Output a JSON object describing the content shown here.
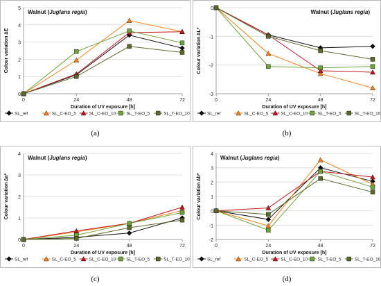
{
  "series_style": [
    {
      "color": "#111111",
      "marker": "diamond"
    },
    {
      "color": "#f58220",
      "marker": "triangle"
    },
    {
      "color": "#c0141c",
      "marker": "triangle"
    },
    {
      "color": "#6fa33b",
      "marker": "square"
    },
    {
      "color": "#5b6a2a",
      "marker": "square"
    }
  ],
  "chart_data": [
    {
      "type": "line",
      "panel_label": "(a)",
      "title_prefix": "Walnut (",
      "title_italic": "Juglans regia",
      "title_suffix": ")",
      "title_position": "top-left",
      "xlabel": "Duration of UV exposure  [h]",
      "ylabel": "Colour variation  ∆E",
      "x": [
        0,
        24,
        48,
        72
      ],
      "xlim": [
        0,
        72
      ],
      "xticks": [
        "0",
        "24",
        "48",
        "72"
      ],
      "ylim": [
        0,
        5
      ],
      "yticks": [
        "0",
        "1",
        "2",
        "3",
        "4",
        "5"
      ],
      "legend_position": "bottom",
      "series": [
        {
          "name": "SL_ref",
          "values": [
            0,
            1.1,
            3.4,
            2.65
          ]
        },
        {
          "name": "SL_C-EO_5",
          "values": [
            0,
            1.95,
            4.25,
            3.6
          ]
        },
        {
          "name": "SL_C-EO_10",
          "values": [
            0,
            1.15,
            3.55,
            3.6
          ]
        },
        {
          "name": "SL_T-EO_5",
          "values": [
            0,
            2.45,
            3.65,
            2.95
          ]
        },
        {
          "name": "SL_T-EO_10",
          "values": [
            0,
            1.0,
            2.75,
            2.4
          ]
        }
      ]
    },
    {
      "type": "line",
      "panel_label": "(b)",
      "title_prefix": "Walnut (",
      "title_italic": "Juglans regia",
      "title_suffix": ")",
      "title_position": "top-right",
      "xlabel": "Duration of UV exposure  [h]",
      "ylabel": "Colour variation  ∆L*",
      "x": [
        0,
        24,
        48,
        72
      ],
      "xlim": [
        0,
        72
      ],
      "xticks": [
        "0",
        "24",
        "48",
        "72"
      ],
      "ylim": [
        -3,
        0
      ],
      "yticks": [
        "-3",
        "-2",
        "-1",
        "0"
      ],
      "legend_position": "bottom",
      "series": [
        {
          "name": "SL_ref",
          "values": [
            0,
            -0.95,
            -1.4,
            -1.35
          ]
        },
        {
          "name": "SL_C-EO_5",
          "values": [
            0,
            -1.6,
            -2.3,
            -2.8
          ]
        },
        {
          "name": "SL_C-EO_10",
          "values": [
            0,
            -0.95,
            -2.2,
            -2.25
          ]
        },
        {
          "name": "SL_T-EO_5",
          "values": [
            0,
            -2.05,
            -2.1,
            -2.05
          ]
        },
        {
          "name": "SL_T-EO_10",
          "values": [
            0,
            -1.0,
            -1.5,
            -1.8
          ]
        }
      ]
    },
    {
      "type": "line",
      "panel_label": "(c)",
      "title_prefix": "Walnut (",
      "title_italic": "Juglans regia",
      "title_suffix": ")",
      "title_position": "top-left",
      "xlabel": "Duration of UV exposure  [h]",
      "ylabel": "Colour variation  ∆a*",
      "x": [
        0,
        24,
        48,
        72
      ],
      "xlim": [
        0,
        72
      ],
      "xticks": [
        "0",
        "24",
        "48",
        "72"
      ],
      "ylim": [
        0,
        4
      ],
      "yticks": [
        "0",
        "1",
        "2",
        "3",
        "4"
      ],
      "legend_position": "bottom",
      "series": [
        {
          "name": "SL_ref",
          "values": [
            0,
            0.1,
            0.3,
            1.0
          ]
        },
        {
          "name": "SL_C-EO_5",
          "values": [
            0,
            0.35,
            0.75,
            1.35
          ]
        },
        {
          "name": "SL_C-EO_10",
          "values": [
            0,
            0.4,
            0.75,
            1.5
          ]
        },
        {
          "name": "SL_T-EO_5",
          "values": [
            0,
            0.2,
            0.75,
            1.25
          ]
        },
        {
          "name": "SL_T-EO_10",
          "values": [
            0,
            0.05,
            0.55,
            0.9
          ]
        }
      ]
    },
    {
      "type": "line",
      "panel_label": "(d)",
      "title_prefix": "Walnut (",
      "title_italic": "Juglans regia",
      "title_suffix": ")",
      "title_position": "top-left",
      "xlabel": "Duration of UV exposure  [h]",
      "ylabel": "Colour variation  ∆b*",
      "x": [
        0,
        24,
        48,
        72
      ],
      "xlim": [
        0,
        72
      ],
      "xticks": [
        "0",
        "24",
        "48",
        "72"
      ],
      "ylim": [
        -2,
        4
      ],
      "yticks": [
        "-2",
        "-1",
        "0",
        "1",
        "2",
        "3",
        "4"
      ],
      "legend_position": "bottom",
      "series": [
        {
          "name": "SL_ref",
          "values": [
            0,
            -0.6,
            3.0,
            2.05
          ]
        },
        {
          "name": "SL_C-EO_5",
          "values": [
            0,
            -1.05,
            3.55,
            1.85
          ]
        },
        {
          "name": "SL_C-EO_10",
          "values": [
            0,
            0.2,
            2.75,
            2.35
          ]
        },
        {
          "name": "SL_T-EO_5",
          "values": [
            0,
            -1.35,
            2.75,
            1.65
          ]
        },
        {
          "name": "SL_T-EO_10",
          "values": [
            0,
            -0.25,
            2.25,
            1.3
          ]
        }
      ]
    }
  ]
}
